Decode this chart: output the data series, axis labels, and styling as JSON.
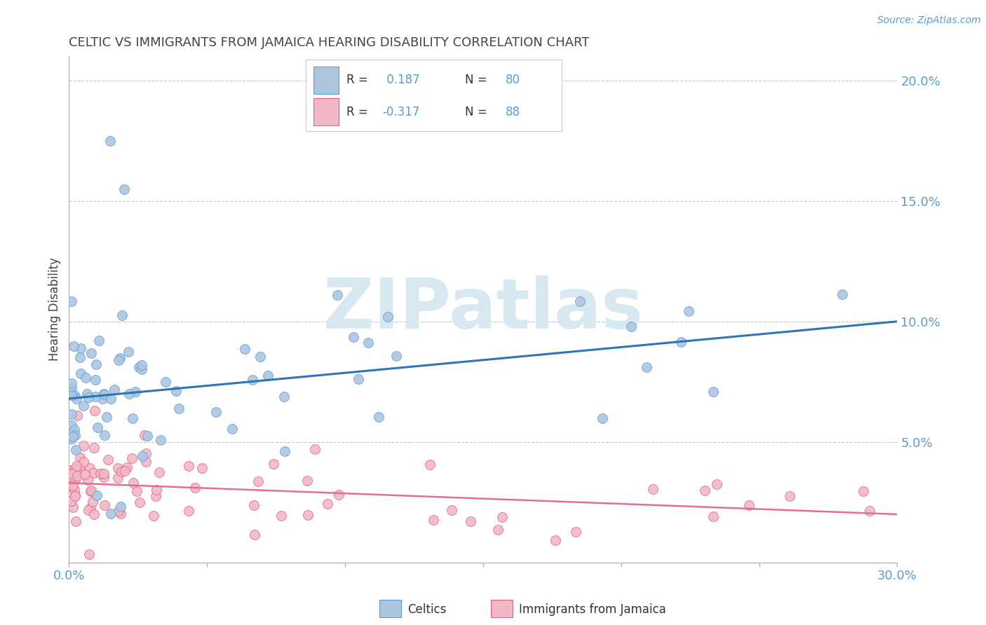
{
  "title": "CELTIC VS IMMIGRANTS FROM JAMAICA HEARING DISABILITY CORRELATION CHART",
  "source": "Source: ZipAtlas.com",
  "ylabel": "Hearing Disability",
  "xlim": [
    0.0,
    0.3
  ],
  "ylim": [
    0.0,
    0.21
  ],
  "xticks": [
    0.0,
    0.05,
    0.1,
    0.15,
    0.2,
    0.25,
    0.3
  ],
  "ytick_positions_right": [
    0.05,
    0.1,
    0.15,
    0.2
  ],
  "ytick_labels_right": [
    "5.0%",
    "10.0%",
    "15.0%",
    "20.0%"
  ],
  "background_color": "#ffffff",
  "grid_color": "#c8c8c8",
  "title_color": "#444444",
  "axis_color": "#aaaaaa",
  "tick_label_color": "#5b9bd5",
  "celtics_color": "#adc6e0",
  "celtics_edge_color": "#5b9bd5",
  "jamaica_color": "#f2b8c6",
  "jamaica_edge_color": "#e06080",
  "celtics_line_color": "#2e75b6",
  "jamaica_line_color": "#e07090",
  "celtics_R": 0.187,
  "celtics_N": 80,
  "jamaica_R": -0.317,
  "jamaica_N": 88,
  "celtics_trend_x": [
    0.0,
    0.3
  ],
  "celtics_trend_y": [
    0.068,
    0.1
  ],
  "jamaica_trend_x": [
    0.0,
    0.3
  ],
  "jamaica_trend_y": [
    0.033,
    0.02
  ],
  "watermark_text": "ZIPatlas",
  "watermark_color": "#d8e8f0",
  "legend_bg": "#ffffff",
  "legend_border": "#cccccc",
  "legend_R_color": "#333333",
  "legend_val_color": "#5b9bd5",
  "legend_N_color": "#5b9bd5",
  "bottom_legend_color": "#333333"
}
